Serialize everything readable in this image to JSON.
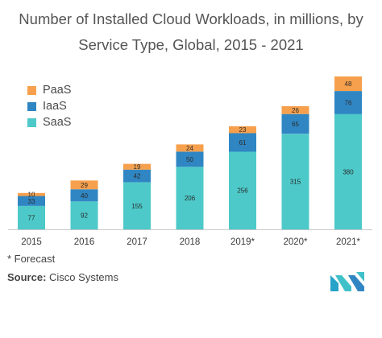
{
  "title": "Number of Installed Cloud Workloads, in millions, by Service Type, Global, 2015 - 2021",
  "footnote": "* Forecast",
  "source": {
    "label": "Source:",
    "value": "Cisco Systems"
  },
  "logo": {
    "icon": "mordor-intelligence-logo-icon"
  },
  "colors": {
    "SaaS": "#4dc9c9",
    "IaaS": "#2f86c3",
    "PaaS": "#f6a04d",
    "axis": "#c8c8c8"
  },
  "chart_data": {
    "type": "bar",
    "stacked": true,
    "title": "Number of Installed Cloud Workloads, in millions, by Service Type, Global, 2015 - 2021",
    "xlabel": "",
    "ylabel": "",
    "categories": [
      "2015",
      "2016",
      "2017",
      "2018",
      "2019*",
      "2020*",
      "2021*"
    ],
    "series": [
      {
        "name": "SaaS",
        "values": [
          77,
          92,
          155,
          206,
          256,
          315,
          380
        ]
      },
      {
        "name": "IaaS",
        "values": [
          33,
          40,
          42,
          50,
          61,
          65,
          76
        ]
      },
      {
        "name": "PaaS",
        "values": [
          10,
          29,
          19,
          24,
          23,
          26,
          48
        ]
      }
    ],
    "legend_order": [
      "PaaS",
      "IaaS",
      "SaaS"
    ],
    "legend_position": "top-left",
    "ylim": [
      0,
      504
    ],
    "grid": false,
    "data_labels": true
  }
}
